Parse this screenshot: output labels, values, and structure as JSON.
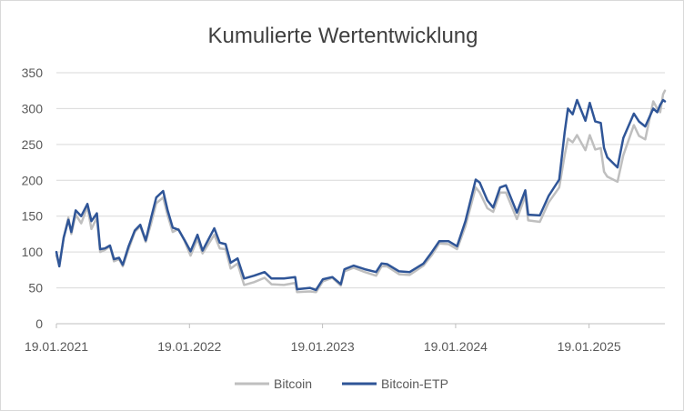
{
  "chart_data": {
    "type": "line",
    "title": "Kumulierte Wertentwicklung",
    "xlabel": "",
    "ylabel": "",
    "ylim": [
      0,
      350
    ],
    "y_ticks": [
      0,
      50,
      100,
      150,
      200,
      250,
      300,
      350
    ],
    "x_range": [
      "2021-01-19",
      "2025-08-15"
    ],
    "x_ticks": [
      {
        "date": "2021-01-19",
        "label": "19.01.2021"
      },
      {
        "date": "2022-01-19",
        "label": "19.01.2022"
      },
      {
        "date": "2023-01-19",
        "label": "19.01.2023"
      },
      {
        "date": "2024-01-19",
        "label": "19.01.2024"
      },
      {
        "date": "2025-01-19",
        "label": "19.01.2025"
      }
    ],
    "grid": "horizontal",
    "legend_position": "bottom",
    "series": [
      {
        "name": "Bitcoin",
        "color": "#bfbfbf",
        "points": [
          [
            "2021-01-19",
            95
          ],
          [
            "2021-01-27",
            82
          ],
          [
            "2021-02-08",
            120
          ],
          [
            "2021-02-21",
            148
          ],
          [
            "2021-03-01",
            125
          ],
          [
            "2021-03-13",
            152
          ],
          [
            "2021-03-28",
            140
          ],
          [
            "2021-04-14",
            163
          ],
          [
            "2021-04-25",
            132
          ],
          [
            "2021-05-10",
            148
          ],
          [
            "2021-05-19",
            100
          ],
          [
            "2021-06-01",
            103
          ],
          [
            "2021-06-15",
            108
          ],
          [
            "2021-06-26",
            87
          ],
          [
            "2021-07-10",
            90
          ],
          [
            "2021-07-20",
            80
          ],
          [
            "2021-08-05",
            104
          ],
          [
            "2021-08-22",
            128
          ],
          [
            "2021-09-06",
            136
          ],
          [
            "2021-09-21",
            114
          ],
          [
            "2021-10-06",
            140
          ],
          [
            "2021-10-20",
            168
          ],
          [
            "2021-11-08",
            176
          ],
          [
            "2021-11-20",
            151
          ],
          [
            "2021-12-04",
            128
          ],
          [
            "2021-12-20",
            132
          ],
          [
            "2022-01-05",
            116
          ],
          [
            "2022-01-22",
            95
          ],
          [
            "2022-02-10",
            118
          ],
          [
            "2022-02-24",
            98
          ],
          [
            "2022-03-28",
            124
          ],
          [
            "2022-04-12",
            105
          ],
          [
            "2022-04-28",
            104
          ],
          [
            "2022-05-12",
            77
          ],
          [
            "2022-05-31",
            84
          ],
          [
            "2022-06-18",
            54
          ],
          [
            "2022-07-15",
            58
          ],
          [
            "2022-08-13",
            64
          ],
          [
            "2022-09-01",
            55
          ],
          [
            "2022-10-05",
            54
          ],
          [
            "2022-11-05",
            57
          ],
          [
            "2022-11-10",
            44
          ],
          [
            "2022-12-15",
            45
          ],
          [
            "2023-01-01",
            44
          ],
          [
            "2023-01-20",
            59
          ],
          [
            "2023-02-15",
            64
          ],
          [
            "2023-03-10",
            53
          ],
          [
            "2023-03-20",
            73
          ],
          [
            "2023-04-14",
            78
          ],
          [
            "2023-05-15",
            72
          ],
          [
            "2023-06-15",
            67
          ],
          [
            "2023-06-30",
            80
          ],
          [
            "2023-07-15",
            80
          ],
          [
            "2023-08-17",
            69
          ],
          [
            "2023-09-15",
            68
          ],
          [
            "2023-10-23",
            81
          ],
          [
            "2023-11-15",
            96
          ],
          [
            "2023-12-05",
            112
          ],
          [
            "2023-12-31",
            111
          ],
          [
            "2024-01-23",
            104
          ],
          [
            "2024-02-15",
            136
          ],
          [
            "2024-03-14",
            190
          ],
          [
            "2024-03-25",
            183
          ],
          [
            "2024-04-15",
            161
          ],
          [
            "2024-05-01",
            156
          ],
          [
            "2024-05-20",
            183
          ],
          [
            "2024-06-05",
            183
          ],
          [
            "2024-07-05",
            146
          ],
          [
            "2024-07-28",
            178
          ],
          [
            "2024-08-05",
            144
          ],
          [
            "2024-09-06",
            142
          ],
          [
            "2024-09-30",
            169
          ],
          [
            "2024-10-29",
            190
          ],
          [
            "2024-11-13",
            235
          ],
          [
            "2024-11-22",
            258
          ],
          [
            "2024-12-05",
            253
          ],
          [
            "2024-12-17",
            263
          ],
          [
            "2025-01-09",
            242
          ],
          [
            "2025-01-21",
            263
          ],
          [
            "2025-02-05",
            243
          ],
          [
            "2025-02-20",
            245
          ],
          [
            "2025-03-01",
            212
          ],
          [
            "2025-03-10",
            205
          ],
          [
            "2025-04-07",
            198
          ],
          [
            "2025-04-23",
            235
          ],
          [
            "2025-05-22",
            277
          ],
          [
            "2025-06-05",
            262
          ],
          [
            "2025-06-22",
            257
          ],
          [
            "2025-07-14",
            310
          ],
          [
            "2025-07-25",
            300
          ],
          [
            "2025-08-02",
            295
          ],
          [
            "2025-08-10",
            320
          ],
          [
            "2025-08-15",
            325
          ]
        ]
      },
      {
        "name": "Bitcoin-ETP",
        "color": "#2f5597",
        "points": [
          [
            "2021-01-19",
            100
          ],
          [
            "2021-01-27",
            80
          ],
          [
            "2021-02-08",
            120
          ],
          [
            "2021-02-21",
            145
          ],
          [
            "2021-03-01",
            128
          ],
          [
            "2021-03-13",
            158
          ],
          [
            "2021-03-28",
            150
          ],
          [
            "2021-04-14",
            167
          ],
          [
            "2021-04-25",
            143
          ],
          [
            "2021-05-10",
            154
          ],
          [
            "2021-05-19",
            104
          ],
          [
            "2021-06-01",
            105
          ],
          [
            "2021-06-15",
            109
          ],
          [
            "2021-06-26",
            90
          ],
          [
            "2021-07-10",
            92
          ],
          [
            "2021-07-20",
            82
          ],
          [
            "2021-08-05",
            108
          ],
          [
            "2021-08-22",
            130
          ],
          [
            "2021-09-06",
            138
          ],
          [
            "2021-09-21",
            116
          ],
          [
            "2021-10-06",
            148
          ],
          [
            "2021-10-20",
            176
          ],
          [
            "2021-11-08",
            185
          ],
          [
            "2021-11-20",
            158
          ],
          [
            "2021-12-04",
            134
          ],
          [
            "2021-12-20",
            131
          ],
          [
            "2022-01-05",
            117
          ],
          [
            "2022-01-22",
            101
          ],
          [
            "2022-02-10",
            124
          ],
          [
            "2022-02-24",
            102
          ],
          [
            "2022-03-28",
            133
          ],
          [
            "2022-04-12",
            113
          ],
          [
            "2022-04-28",
            111
          ],
          [
            "2022-05-12",
            85
          ],
          [
            "2022-05-31",
            91
          ],
          [
            "2022-06-18",
            63
          ],
          [
            "2022-07-15",
            67
          ],
          [
            "2022-08-13",
            72
          ],
          [
            "2022-09-01",
            63
          ],
          [
            "2022-10-05",
            63
          ],
          [
            "2022-11-05",
            65
          ],
          [
            "2022-11-10",
            48
          ],
          [
            "2022-12-15",
            50
          ],
          [
            "2023-01-01",
            47
          ],
          [
            "2023-01-20",
            62
          ],
          [
            "2023-02-15",
            65
          ],
          [
            "2023-03-10",
            55
          ],
          [
            "2023-03-20",
            76
          ],
          [
            "2023-04-14",
            81
          ],
          [
            "2023-05-15",
            76
          ],
          [
            "2023-06-15",
            72
          ],
          [
            "2023-06-30",
            84
          ],
          [
            "2023-07-15",
            83
          ],
          [
            "2023-08-17",
            73
          ],
          [
            "2023-09-15",
            72
          ],
          [
            "2023-10-23",
            84
          ],
          [
            "2023-11-15",
            100
          ],
          [
            "2023-12-05",
            115
          ],
          [
            "2023-12-31",
            115
          ],
          [
            "2024-01-23",
            108
          ],
          [
            "2024-02-15",
            143
          ],
          [
            "2024-03-14",
            201
          ],
          [
            "2024-03-25",
            197
          ],
          [
            "2024-04-15",
            172
          ],
          [
            "2024-05-01",
            162
          ],
          [
            "2024-05-20",
            190
          ],
          [
            "2024-06-05",
            193
          ],
          [
            "2024-07-05",
            155
          ],
          [
            "2024-07-28",
            186
          ],
          [
            "2024-08-05",
            152
          ],
          [
            "2024-09-06",
            151
          ],
          [
            "2024-09-30",
            178
          ],
          [
            "2024-10-29",
            201
          ],
          [
            "2024-11-13",
            267
          ],
          [
            "2024-11-22",
            300
          ],
          [
            "2024-12-05",
            292
          ],
          [
            "2024-12-17",
            312
          ],
          [
            "2025-01-09",
            283
          ],
          [
            "2025-01-21",
            308
          ],
          [
            "2025-02-05",
            282
          ],
          [
            "2025-02-20",
            280
          ],
          [
            "2025-03-01",
            245
          ],
          [
            "2025-03-10",
            232
          ],
          [
            "2025-04-07",
            218
          ],
          [
            "2025-04-23",
            259
          ],
          [
            "2025-05-22",
            293
          ],
          [
            "2025-06-05",
            282
          ],
          [
            "2025-06-22",
            275
          ],
          [
            "2025-07-14",
            300
          ],
          [
            "2025-07-25",
            295
          ],
          [
            "2025-08-02",
            305
          ],
          [
            "2025-08-10",
            312
          ],
          [
            "2025-08-15",
            310
          ]
        ]
      }
    ]
  }
}
